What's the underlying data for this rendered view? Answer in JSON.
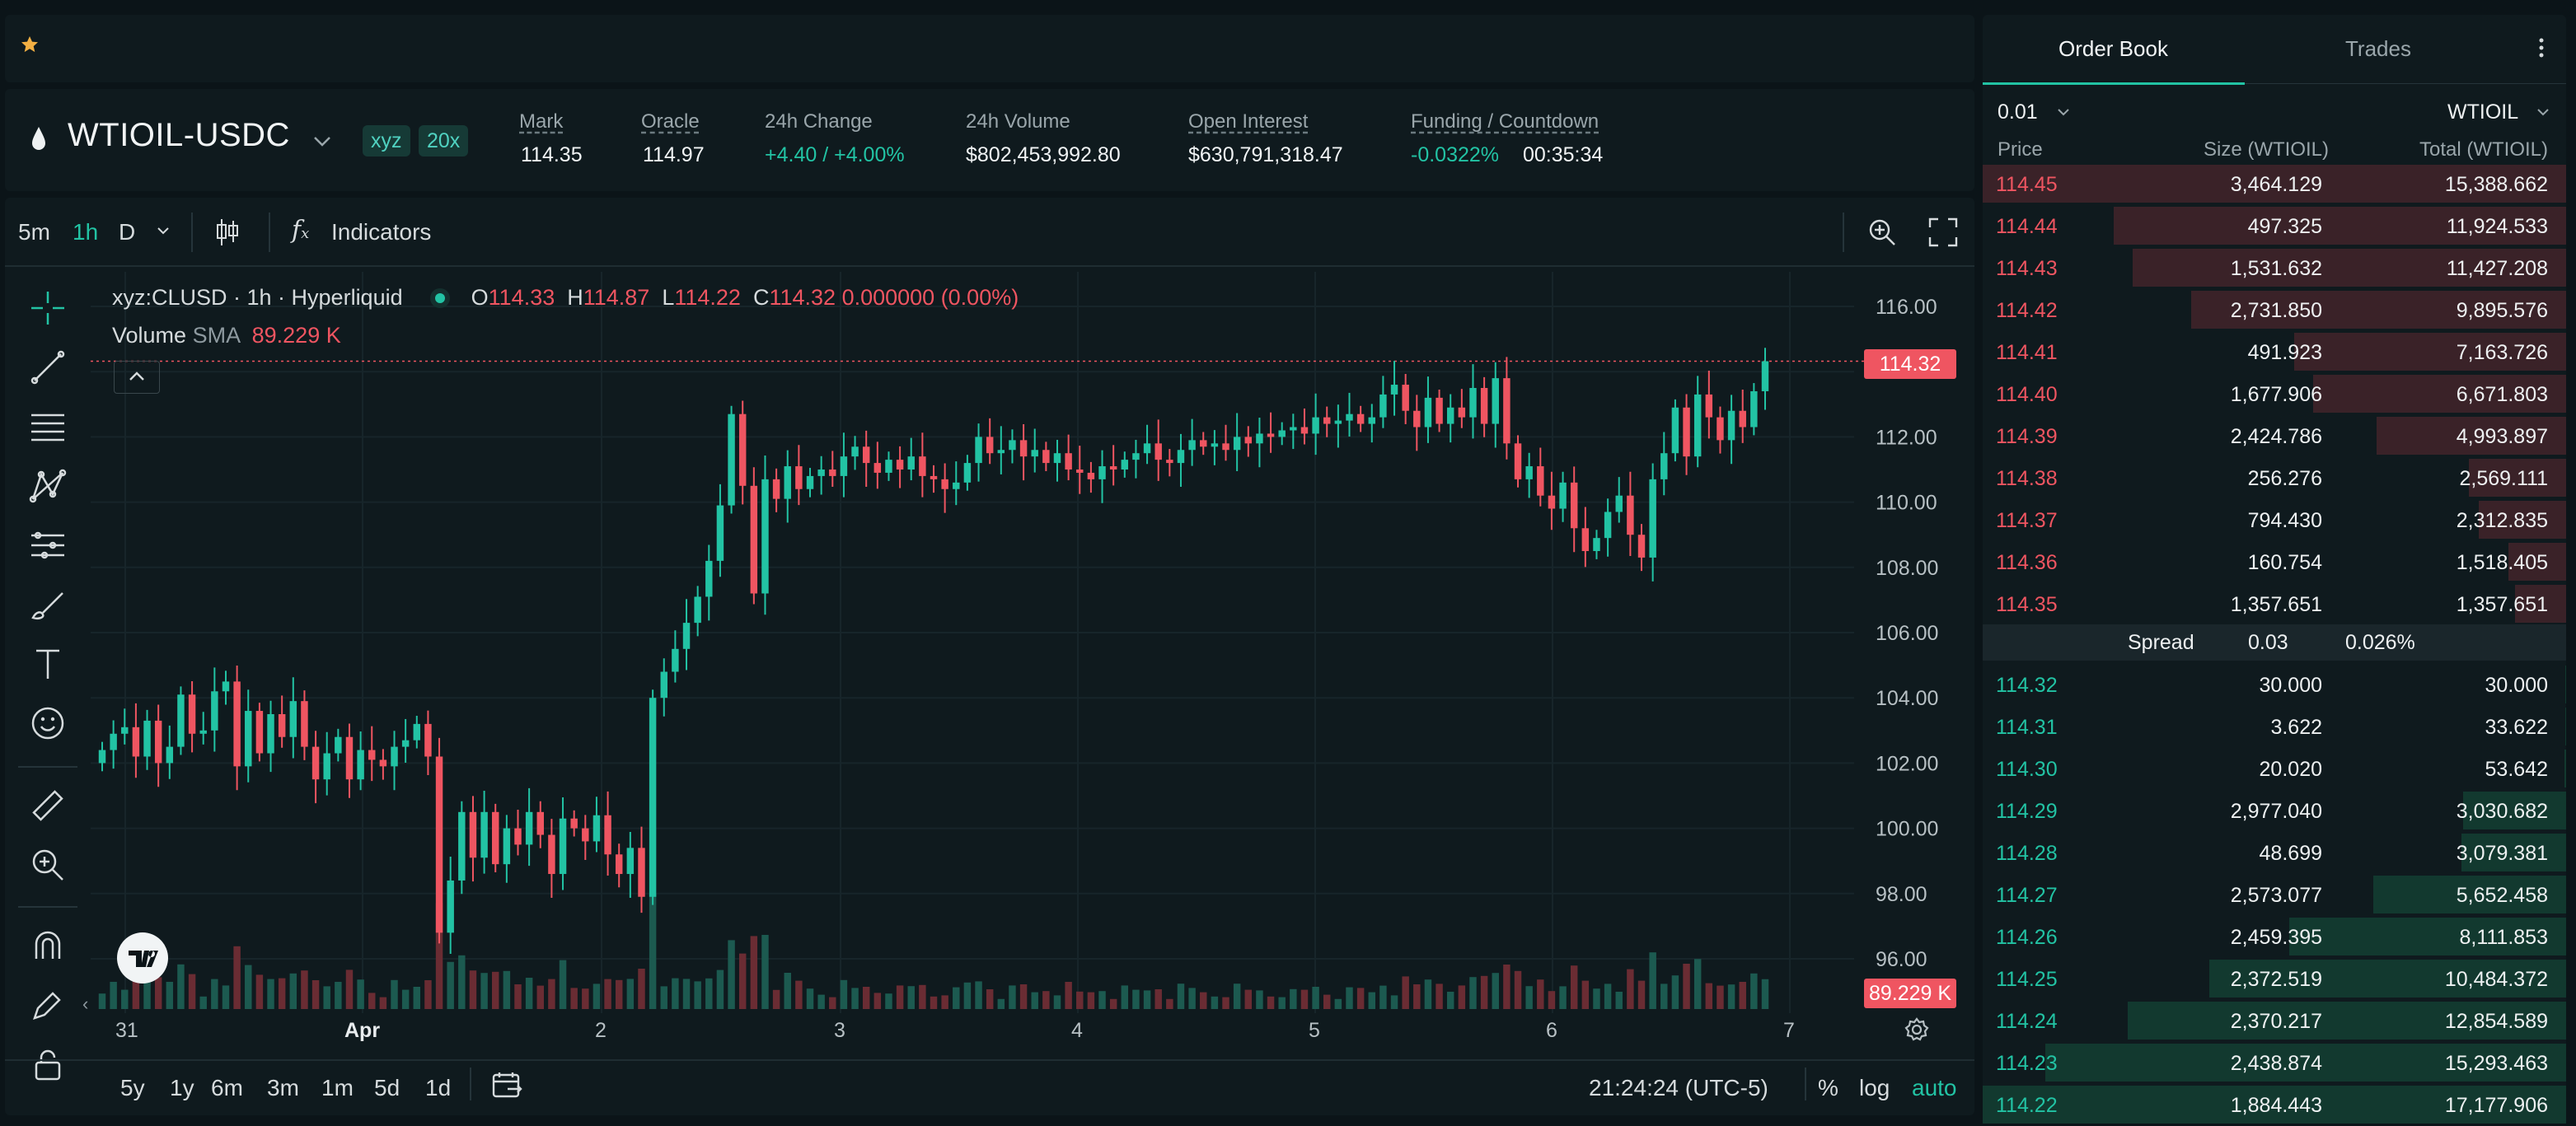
{
  "ticker": {
    "symbol": "WTIOIL-USDC",
    "dex_badge": "xyz",
    "leverage_badge": "20x",
    "stats": [
      {
        "label": "Mark",
        "value": "114.35"
      },
      {
        "label": "Oracle",
        "value": "114.97"
      },
      {
        "label": "24h Change",
        "value": "+4.40 / +4.00%"
      },
      {
        "label": "24h Volume",
        "value": "$802,453,992.80"
      },
      {
        "label": "Open Interest",
        "value": "$630,791,318.47"
      },
      {
        "label": "Funding / Countdown",
        "value": "-0.0322%",
        "value2": "00:35:34"
      }
    ]
  },
  "toolbar": {
    "intervals": [
      "5m",
      "1h",
      "D"
    ],
    "active_interval": "1h",
    "indicators_label": "Indicators"
  },
  "legend": {
    "symbol_line": "xyz:CLUSD · 1h · Hyperliquid",
    "o_label": "O",
    "o_value": "114.33",
    "h_label": "H",
    "h_value": "114.87",
    "l_label": "L",
    "l_value": "114.22",
    "c_label": "C",
    "c_value": "114.32",
    "change": "0.000000 (0.00%)",
    "volume_label": "Volume",
    "sma_label": "SMA",
    "volume_value": "89.229 K"
  },
  "price_tags": {
    "last": "114.32",
    "volume": "89.229 K"
  },
  "bottom_bar": {
    "ranges": [
      "5y",
      "1y",
      "6m",
      "3m",
      "1m",
      "5d",
      "1d"
    ],
    "clock": "21:24:24 (UTC-5)",
    "percent": "%",
    "log": "log",
    "auto": "auto"
  },
  "icons": [
    "star-icon",
    "drop-icon",
    "chevron-down-icon",
    "candles-icon",
    "fx-icon",
    "crosshair-icon",
    "trend-line-icon",
    "fib-icon",
    "pattern-icon",
    "projection-icon",
    "brush-icon",
    "text-icon",
    "emoji-icon",
    "ruler-icon",
    "zoom-icon",
    "magnet-icon",
    "pencil-lock-icon",
    "lock-icon",
    "search-zoom-icon",
    "fullscreen-icon",
    "settings-icon",
    "calendar-icon",
    "more-icon"
  ],
  "colors": {
    "up": "#22c3a4",
    "down": "#ef5561",
    "bg": "#0b1418",
    "panel": "#0f1a1e"
  },
  "chart_data": {
    "type": "candlestick",
    "title": "xyz:CLUSD · 1h · Hyperliquid",
    "xlabel": "",
    "ylabel": "",
    "ylim": [
      95,
      117
    ],
    "y_ticks": [
      "116.00",
      "114.00",
      "112.00",
      "110.00",
      "108.00",
      "106.00",
      "104.00",
      "102.00",
      "100.00",
      "98.00",
      "96.00"
    ],
    "x_ticks": [
      "31",
      "Apr",
      "2",
      "3",
      "4",
      "5",
      "6",
      "7"
    ],
    "last_price": 114.32,
    "close_series": [
      102.4,
      102.9,
      103.1,
      102.2,
      103.3,
      102.0,
      102.5,
      104.1,
      102.9,
      103.0,
      104.2,
      104.5,
      101.9,
      103.6,
      102.3,
      103.5,
      102.8,
      103.9,
      102.5,
      101.5,
      102.3,
      102.8,
      101.5,
      102.4,
      102.1,
      101.9,
      102.5,
      102.7,
      103.2,
      102.2,
      96.8,
      98.4,
      100.5,
      99.1,
      100.5,
      98.9,
      100.0,
      99.5,
      100.5,
      99.8,
      98.6,
      100.3,
      100.0,
      99.6,
      100.4,
      99.2,
      98.6,
      99.4,
      97.9,
      104.0,
      104.8,
      105.5,
      106.3,
      107.1,
      108.2,
      109.9,
      112.7,
      110.5,
      107.2,
      110.7,
      110.1,
      111.1,
      110.4,
      110.8,
      111.0,
      110.8,
      111.4,
      111.7,
      111.2,
      110.9,
      111.3,
      111.0,
      111.4,
      110.8,
      110.7,
      110.4,
      110.6,
      111.2,
      112.0,
      111.5,
      111.6,
      111.9,
      111.4,
      111.6,
      111.2,
      111.5,
      111.0,
      110.9,
      110.7,
      111.1,
      111.0,
      111.3,
      111.5,
      111.8,
      111.3,
      111.2,
      111.6,
      111.9,
      111.7,
      111.8,
      111.6,
      112.0,
      111.8,
      112.1,
      112.0,
      112.2,
      112.3,
      112.1,
      112.6,
      112.4,
      112.5,
      112.7,
      112.4,
      112.6,
      113.3,
      113.6,
      112.8,
      112.3,
      113.2,
      112.4,
      112.9,
      112.6,
      113.5,
      112.4,
      113.8,
      111.8,
      110.7,
      111.1,
      110.2,
      109.8,
      110.6,
      109.2,
      108.5,
      108.9,
      109.7,
      110.2,
      109.0,
      108.3,
      110.7,
      111.5,
      112.9,
      111.4,
      113.3,
      112.6,
      111.9,
      112.8,
      112.3,
      113.4,
      114.32
    ],
    "volume": {
      "last": 89229,
      "sma_label": "SMA"
    }
  },
  "order_book": {
    "tabs": [
      "Order Book",
      "Trades"
    ],
    "active_tab": "Order Book",
    "tick": "0.01",
    "asset": "WTIOIL",
    "columns": [
      "Price",
      "Size (WTIOIL)",
      "Total (WTIOIL)"
    ],
    "asks": [
      {
        "price": "114.45",
        "size": "3,464.129",
        "total": "15,388.662",
        "depth": 1.0
      },
      {
        "price": "114.44",
        "size": "497.325",
        "total": "11,924.533",
        "depth": 0.775
      },
      {
        "price": "114.43",
        "size": "1,531.632",
        "total": "11,427.208",
        "depth": 0.743
      },
      {
        "price": "114.42",
        "size": "2,731.850",
        "total": "9,895.576",
        "depth": 0.643
      },
      {
        "price": "114.41",
        "size": "491.923",
        "total": "7,163.726",
        "depth": 0.466
      },
      {
        "price": "114.40",
        "size": "1,677.906",
        "total": "6,671.803",
        "depth": 0.434
      },
      {
        "price": "114.39",
        "size": "2,424.786",
        "total": "4,993.897",
        "depth": 0.325
      },
      {
        "price": "114.38",
        "size": "256.276",
        "total": "2,569.111",
        "depth": 0.167
      },
      {
        "price": "114.37",
        "size": "794.430",
        "total": "2,312.835",
        "depth": 0.15
      },
      {
        "price": "114.36",
        "size": "160.754",
        "total": "1,518.405",
        "depth": 0.099
      },
      {
        "price": "114.35",
        "size": "1,357.651",
        "total": "1,357.651",
        "depth": 0.088
      }
    ],
    "spread": {
      "label": "Spread",
      "value": "0.03",
      "pct": "0.026%"
    },
    "bids": [
      {
        "price": "114.32",
        "size": "30.000",
        "total": "30.000",
        "depth": 0.002
      },
      {
        "price": "114.31",
        "size": "3.622",
        "total": "33.622",
        "depth": 0.002
      },
      {
        "price": "114.30",
        "size": "20.020",
        "total": "53.642",
        "depth": 0.003
      },
      {
        "price": "114.29",
        "size": "2,977.040",
        "total": "3,030.682",
        "depth": 0.177
      },
      {
        "price": "114.28",
        "size": "48.699",
        "total": "3,079.381",
        "depth": 0.18
      },
      {
        "price": "114.27",
        "size": "2,573.077",
        "total": "5,652.458",
        "depth": 0.33
      },
      {
        "price": "114.26",
        "size": "2,459.395",
        "total": "8,111.853",
        "depth": 0.474
      },
      {
        "price": "114.25",
        "size": "2,372.519",
        "total": "10,484.372",
        "depth": 0.612
      },
      {
        "price": "114.24",
        "size": "2,370.217",
        "total": "12,854.589",
        "depth": 0.751
      },
      {
        "price": "114.23",
        "size": "2,438.874",
        "total": "15,293.463",
        "depth": 0.893
      },
      {
        "price": "114.22",
        "size": "1,884.443",
        "total": "17,177.906",
        "depth": 1.0
      }
    ]
  }
}
